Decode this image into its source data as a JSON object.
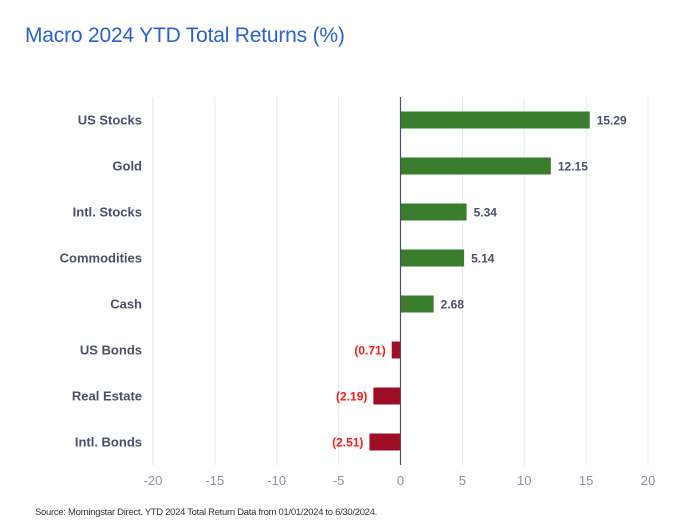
{
  "chart_data": {
    "type": "bar",
    "orientation": "horizontal",
    "title": "Macro 2024 YTD Total Returns (%)",
    "categories": [
      "US Stocks",
      "Gold",
      "Intl. Stocks",
      "Commodities",
      "Cash",
      "US Bonds",
      "Real Estate",
      "Intl. Bonds"
    ],
    "values": [
      15.29,
      12.15,
      5.34,
      5.14,
      2.68,
      -0.71,
      -2.19,
      -2.51
    ],
    "value_labels": [
      "15.29",
      "12.15",
      "5.34",
      "5.14",
      "2.68",
      "(0.71)",
      "(2.19)",
      "(2.51)"
    ],
    "xlabel": "",
    "ylabel": "",
    "xlim": [
      -20,
      20
    ],
    "xticks": [
      -20,
      -15,
      -10,
      -5,
      0,
      5,
      10,
      15,
      20
    ],
    "xtick_labels": [
      "-20",
      "-15",
      "-10",
      "-5",
      "0",
      "5",
      "10",
      "15",
      "20"
    ],
    "grid": "vertical",
    "legend": "none",
    "colors": {
      "positive": "#3a7d2c",
      "negative": "#a00d26",
      "positive_label": "#4a5068",
      "negative_label": "#ff1a1a",
      "title": "#2a62d3"
    }
  },
  "footer": {
    "source": "Source: Morningstar Direct. YTD 2024 Total Return Data from 01/01/2024 to 6/30/2024."
  }
}
